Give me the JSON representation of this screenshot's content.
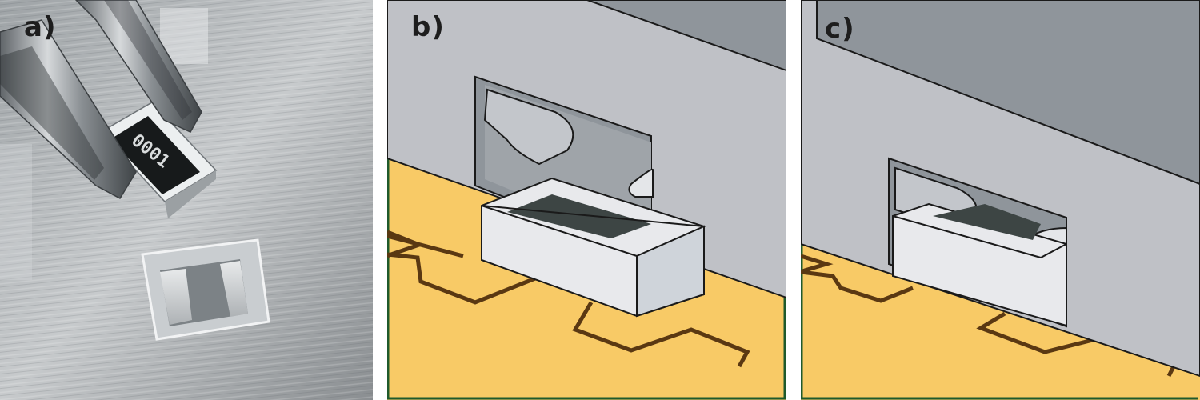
{
  "figure": {
    "panels": [
      {
        "id": "a",
        "label": "a)",
        "resistor_marking": "0001"
      },
      {
        "id": "b",
        "label": "b)"
      },
      {
        "id": "c",
        "label": "c)"
      }
    ]
  },
  "colors": {
    "pcb_yellow": "#f8ca66",
    "trace_brown": "#5a3812",
    "pcb_border_green": "#1f5a2c",
    "housing_light": "#bfc1c6",
    "housing_dark": "#8f959b",
    "component_body": "#e8e9ec",
    "component_top_dark": "#3d4544",
    "outline": "#1a1a1a"
  }
}
